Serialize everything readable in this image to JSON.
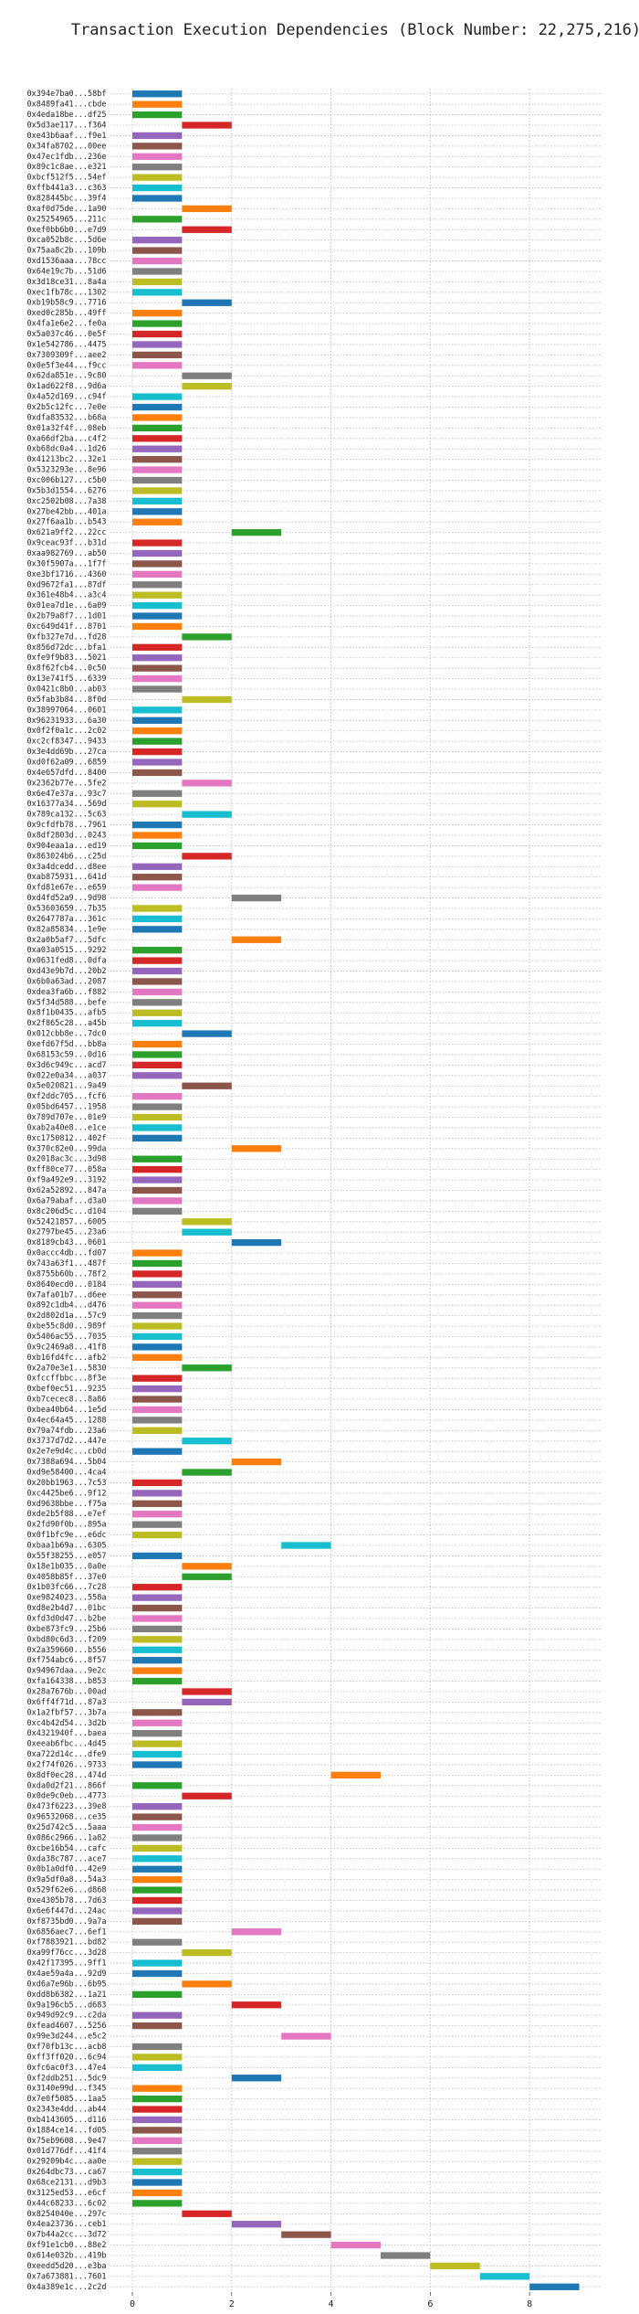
{
  "chart_data": {
    "type": "gantt",
    "title": "Transaction Execution Dependencies (Block Number: 22,275,216)",
    "categories": [
      "0x394e7ba0...58bf",
      "0x8489fa41...cbde",
      "0x4eda18be...df25",
      "0x5d3ae117...f364",
      "0xe43b6aaf...f9e1",
      "0x34fa8702...00ee",
      "0x47ec1fdb...236e",
      "0x89c1c8ae...e321",
      "0xbcf512f5...54ef",
      "0xffb441a3...c363",
      "0x828445bc...39f4",
      "0xaf0d75de...1a90",
      "0x25254965...211c",
      "0xef0bb6b0...e7d9",
      "0xca052b8c...5d6e",
      "0x75aa8c2b...109b",
      "0xd1536aaa...78cc",
      "0x64e19c7b...51d6",
      "0x3d18ce31...8a4a",
      "0xec1fb78c...1302",
      "0xb19b58c9...7716",
      "0xed0c285b...49ff",
      "0x4fa1e6e2...fe0a",
      "0x5a037c46...0e5f",
      "0x1e542786...4475",
      "0x7309309f...aee2",
      "0x0e5f3e44...f9cc",
      "0x62da851e...9c80",
      "0x1ad622f8...9d6a",
      "0x4a52d169...c94f",
      "0x2b5c12fc...7e0e",
      "0xdfa83532...b68a",
      "0x01a32f4f...08eb",
      "0xa66df2ba...c4f2",
      "0xb68dc0a4...1d26",
      "0x41213bc2...32e1",
      "0x5323293e...8e96",
      "0xc006b127...c5b0",
      "0x5b3d1554...6276",
      "0xc2502b08...7a38",
      "0x27be42bb...401a",
      "0x27f6aa1b...b543",
      "0x621a9ff2...22cc",
      "0x9ceac93f...b31d",
      "0xaa982769...ab50",
      "0x30f5907a...1f7f",
      "0xe3bf1716...4360",
      "0xd9672fa1...87df",
      "0x361e48b4...a3c4",
      "0x01ea7d1e...6a09",
      "0x2b79a8f7...1d01",
      "0xc649d41f...8701",
      "0xfb327e7d...fd28",
      "0x856d72dc...bfa1",
      "0xfe9f9b83...5021",
      "0x8f62fcb4...0c50",
      "0x13e741f5...6339",
      "0x0421c8b0...ab03",
      "0x5fab3b84...8f0d",
      "0x38997064...0601",
      "0x96231933...6a30",
      "0x0f2f0a1c...2c02",
      "0xc2cf8347...9433",
      "0x3e4dd69b...27ca",
      "0xd0f62a09...6859",
      "0x4e657dfd...8400",
      "0x2362b77e...5fe2",
      "0x6e47e37a...93c7",
      "0x16377a34...569d",
      "0x789ca132...5c63",
      "0x9cfdfb78...7961",
      "0x8df2803d...0243",
      "0x904eaa1a...ed19",
      "0x863024b6...c25d",
      "0x3a4dcedd...d8ee",
      "0xab875931...641d",
      "0xfd81e67e...e659",
      "0xd4fd52a9...9d98",
      "0x53603659...7b35",
      "0x2647787a...361c",
      "0x82a85834...1e9e",
      "0x2a0b5af7...5dfc",
      "0xa03a0515...9292",
      "0x0631fed8...0dfa",
      "0xd43e9b7d...20b2",
      "0x6b0a63ad...2087",
      "0xdea3fa6b...f882",
      "0x5f34d588...befe",
      "0x8f1b0435...afb5",
      "0x2f865c28...a45b",
      "0x012cbb8e...7dc0",
      "0xefd67f5d...bb8a",
      "0x68153c59...0d16",
      "0x3d6c949c...acd7",
      "0x022e0a34...a037",
      "0x5e020821...9a49",
      "0xf2ddc705...fcf6",
      "0x05bd6457...1958",
      "0x789d707e...01e9",
      "0xab2a40e8...e1ce",
      "0xc1750812...402f",
      "0x370c82e0...99da",
      "0x2018ac3c...3d98",
      "0xff80ce77...058a",
      "0xf9a492e9...3192",
      "0x62a52892...847a",
      "0x6a79abaf...d3a0",
      "0x8c206d5c...d104",
      "0x52421857...6005",
      "0x2797be45...23a6",
      "0x8189cb43...0601",
      "0x0accc4db...fd07",
      "0x743a63f1...487f",
      "0x8755b60b...78f2",
      "0x8640ecd0...0184",
      "0x7afa01b7...d6ee",
      "0x892c1db4...d476",
      "0x2d802d1a...57c9",
      "0xbe55c8d0...989f",
      "0x5406ac55...7035",
      "0x9c2469a8...41f8",
      "0xb16fd4fc...afb2",
      "0x2a70e3e1...5830",
      "0xfccffbbc...8f3e",
      "0xbef0ec51...9235",
      "0xb7cecec8...8a86",
      "0xbea40b64...1e5d",
      "0x4ec64a45...1288",
      "0x79a74fdb...23a6",
      "0x3737d7d2...447e",
      "0x2e7e9d4c...cb0d",
      "0x7388a694...5b04",
      "0xd9e58400...4ca4",
      "0x20bb1963...7c53",
      "0xc4425be6...9f12",
      "0xd9638bbe...f75a",
      "0xde2b5f88...e7ef",
      "0x2fd90f0b...895a",
      "0x0f1bfc9e...e6dc",
      "0xbaa1b69a...6305",
      "0x55f38255...e057",
      "0x18e1b035...0a0e",
      "0x4058b85f...37e0",
      "0x1b03fc66...7c28",
      "0xe9824023...558a",
      "0xd8e2b4d7...01bc",
      "0xfd3d0d47...b2be",
      "0xbe873fc9...25b6",
      "0xbd80c6d3...f209",
      "0x2a359660...b556",
      "0xf754abc6...8f57",
      "0x94967daa...9e2c",
      "0xfa164338...b853",
      "0x28a7676b...00ad",
      "0x6ff4f71d...87a3",
      "0x1a2fbf57...3b7a",
      "0xc4b42d54...3d2b",
      "0x4321940f...baea",
      "0xeeab6fbc...4d45",
      "0xa722d14c...dfe9",
      "0x2f74f026...9733",
      "0x8df0ec28...474d",
      "0xda0d2f21...866f",
      "0x0de9c0eb...4773",
      "0x473f6223...39e8",
      "0x96532068...ce35",
      "0x25d742c5...5aaa",
      "0x086c2966...1a82",
      "0xcbe16b54...cafc",
      "0xda38c787...ace7",
      "0x0b1a0df0...42e9",
      "0x9a5df0a8...54a3",
      "0x529f62e6...d868",
      "0xe4305b78...7d63",
      "0x6e6f447d...24ac",
      "0xf8735bd0...9a7a",
      "0x6856aec7...6ef1",
      "0xf7883921...bd82",
      "0xa99f76cc...3d28",
      "0x42f17395...9ff1",
      "0x4ae59a4a...92d9",
      "0xd6a7e96b...6b95",
      "0xdd8b6382...1a21",
      "0x9a196cb5...d683",
      "0x949d92c9...c2da",
      "0xfead4607...5256",
      "0x99e3d244...e5c2",
      "0xf70fb13c...acb8",
      "0xff3ff020...6c94",
      "0xfc6ac0f3...47e4",
      "0xf2ddb251...5dc9",
      "0x3140e99d...f345",
      "0x7e0f5085...1aa5",
      "0x2343e4dd...ab44",
      "0xb4143605...d116",
      "0x1884ce14...fd05",
      "0x75eb9608...9e47",
      "0x01d776df...41f4",
      "0x29209b4c...aa0e",
      "0x264dbc73...ca67",
      "0x68ce2131...d9b3",
      "0x3125ed53...e6cf",
      "0x44c68233...6c02",
      "0x8254040e...297c",
      "0x4ea23736...ceb1",
      "0x7b44a2cc...3d72",
      "0xf91e1cb0...88e2",
      "0x614e032b...419b",
      "0xeedd5d20...e3ba",
      "0x7a673881...7601",
      "0x4a389e1c...2c2d"
    ],
    "start": [
      0,
      0,
      0,
      1,
      0,
      0,
      0,
      0,
      0,
      0,
      0,
      1,
      0,
      1,
      0,
      0,
      0,
      0,
      0,
      0,
      1,
      0,
      0,
      0,
      0,
      0,
      0,
      1,
      1,
      0,
      0,
      0,
      0,
      0,
      0,
      0,
      0,
      0,
      0,
      0,
      0,
      0,
      2,
      0,
      0,
      0,
      0,
      0,
      0,
      0,
      0,
      0,
      1,
      0,
      0,
      0,
      0,
      0,
      1,
      0,
      0,
      0,
      0,
      0,
      0,
      0,
      1,
      0,
      0,
      1,
      0,
      0,
      0,
      1,
      0,
      0,
      0,
      2,
      0,
      0,
      0,
      2,
      0,
      0,
      0,
      0,
      0,
      0,
      0,
      0,
      1,
      0,
      0,
      0,
      0,
      1,
      0,
      0,
      0,
      0,
      0,
      2,
      0,
      0,
      0,
      0,
      0,
      0,
      1,
      1,
      2,
      0,
      0,
      0,
      0,
      0,
      0,
      0,
      0,
      0,
      0,
      0,
      1,
      0,
      0,
      0,
      0,
      0,
      0,
      1,
      0,
      2,
      1,
      0,
      0,
      0,
      0,
      0,
      0,
      3,
      0,
      1,
      1,
      0,
      0,
      0,
      0,
      0,
      0,
      0,
      0,
      0,
      0,
      1,
      1,
      0,
      0,
      0,
      0,
      0,
      0,
      4,
      0,
      1,
      0,
      0,
      0,
      0,
      0,
      0,
      0,
      0,
      0,
      0,
      0,
      0,
      2,
      0,
      1,
      0,
      0,
      1,
      0,
      2,
      0,
      0,
      3,
      0,
      0,
      0,
      2,
      0,
      0,
      0,
      0,
      0,
      0,
      0,
      0,
      0,
      0,
      0,
      0,
      1,
      2,
      3,
      4,
      5,
      6,
      7,
      8
    ],
    "end": [
      1,
      1,
      1,
      2,
      1,
      1,
      1,
      1,
      1,
      1,
      1,
      2,
      1,
      2,
      1,
      1,
      1,
      1,
      1,
      1,
      2,
      1,
      1,
      1,
      1,
      1,
      1,
      2,
      2,
      1,
      1,
      1,
      1,
      1,
      1,
      1,
      1,
      1,
      1,
      1,
      1,
      1,
      3,
      1,
      1,
      1,
      1,
      1,
      1,
      1,
      1,
      1,
      2,
      1,
      1,
      1,
      1,
      1,
      2,
      1,
      1,
      1,
      1,
      1,
      1,
      1,
      2,
      1,
      1,
      2,
      1,
      1,
      1,
      2,
      1,
      1,
      1,
      3,
      1,
      1,
      1,
      3,
      1,
      1,
      1,
      1,
      1,
      1,
      1,
      1,
      2,
      1,
      1,
      1,
      1,
      2,
      1,
      1,
      1,
      1,
      1,
      3,
      1,
      1,
      1,
      1,
      1,
      1,
      2,
      2,
      3,
      1,
      1,
      1,
      1,
      1,
      1,
      1,
      1,
      1,
      1,
      1,
      2,
      1,
      1,
      1,
      1,
      1,
      1,
      2,
      1,
      3,
      2,
      1,
      1,
      1,
      1,
      1,
      1,
      4,
      1,
      2,
      2,
      1,
      1,
      1,
      1,
      1,
      1,
      1,
      1,
      1,
      1,
      2,
      2,
      1,
      1,
      1,
      1,
      1,
      1,
      5,
      1,
      2,
      1,
      1,
      1,
      1,
      1,
      1,
      1,
      1,
      1,
      1,
      1,
      1,
      3,
      1,
      2,
      1,
      1,
      2,
      1,
      3,
      1,
      1,
      4,
      1,
      1,
      1,
      3,
      1,
      1,
      1,
      1,
      1,
      1,
      1,
      1,
      1,
      1,
      1,
      1,
      2,
      3,
      4,
      5,
      6,
      7,
      8,
      9
    ],
    "colors": [
      "#1f77b4",
      "#ff7f0e",
      "#2ca02c",
      "#d62728",
      "#9467bd",
      "#8c564b",
      "#e377c2",
      "#7f7f7f",
      "#bcbd22",
      "#17becf"
    ],
    "xlim": [
      -0.45,
      9.45
    ],
    "xticks": [
      0,
      2,
      4,
      6,
      8
    ],
    "grid": true
  }
}
